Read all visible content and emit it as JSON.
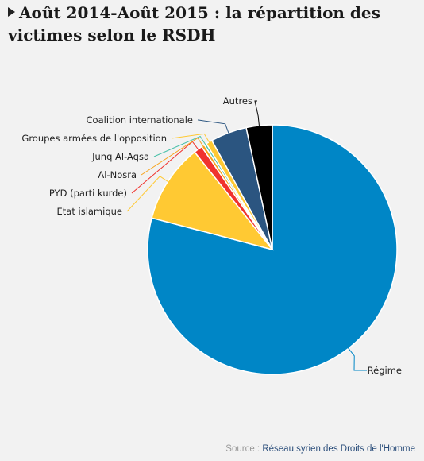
{
  "title": "Août 2014-Août 2015 : la répartition des victimes selon le RSDH",
  "source": {
    "label": "Source : ",
    "link_text": "Réseau syrien des Droits de l'Homme"
  },
  "chart_data": {
    "type": "pie",
    "categories": [
      "Régime",
      "Etat islamique",
      "PYD (parti kurde)",
      "Al-Nosra",
      "Junq Al-Aqsa",
      "Groupes armées de l'opposition",
      "Coalition internationale",
      "Autres"
    ],
    "values": [
      77.5,
      10.0,
      1.1,
      0.4,
      0.3,
      0.8,
      4.6,
      3.3
    ],
    "colors": [
      "#0086c6",
      "#ffc933",
      "#f0322d",
      "#f7a41d",
      "#48c0a8",
      "#ffc933",
      "#2b5580",
      "#000000"
    ],
    "legend": "none"
  }
}
